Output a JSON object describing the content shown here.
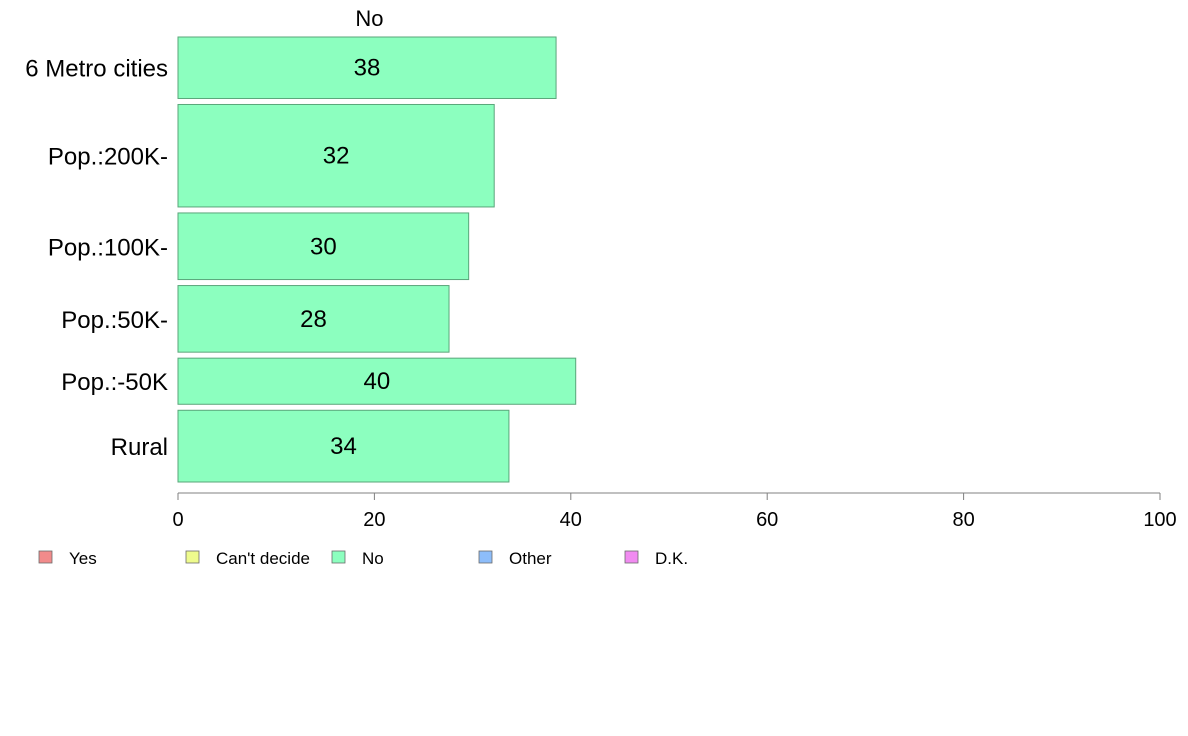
{
  "chart_data": {
    "type": "bar",
    "orientation": "horizontal",
    "panel_title": "No",
    "categories": [
      "6 Metro cities",
      "Pop.:200K-",
      "Pop.:100K-",
      "Pop.:50K-",
      "Pop.:-50K",
      "Rural"
    ],
    "series": [
      {
        "name": "No",
        "values": [
          38.5,
          32.2,
          29.6,
          27.6,
          40.5,
          33.7
        ],
        "labels": [
          "38",
          "32",
          "30",
          "28",
          "40",
          "34"
        ]
      }
    ],
    "category_weights": [
      1.2,
      2.0,
      1.3,
      1.3,
      0.9,
      1.4
    ],
    "xlim": [
      0,
      100
    ],
    "xticks": [
      "0",
      "20",
      "40",
      "60",
      "80",
      "100"
    ],
    "xtick_values": [
      0,
      20,
      40,
      60,
      80,
      100
    ],
    "grid": false,
    "legend": {
      "position": "bottom",
      "items": [
        {
          "label": "Yes",
          "color": "#f28b8b"
        },
        {
          "label": "Can't decide",
          "color": "#eefb8d"
        },
        {
          "label": "No",
          "color": "#8cffbf"
        },
        {
          "label": "Other",
          "color": "#8dbdfa"
        },
        {
          "label": "D.K.",
          "color": "#f18bf1"
        }
      ]
    },
    "colors": {
      "bar_fill": "#8cffbf",
      "bar_stroke": "#5aa67a",
      "axis": "#808080"
    }
  }
}
